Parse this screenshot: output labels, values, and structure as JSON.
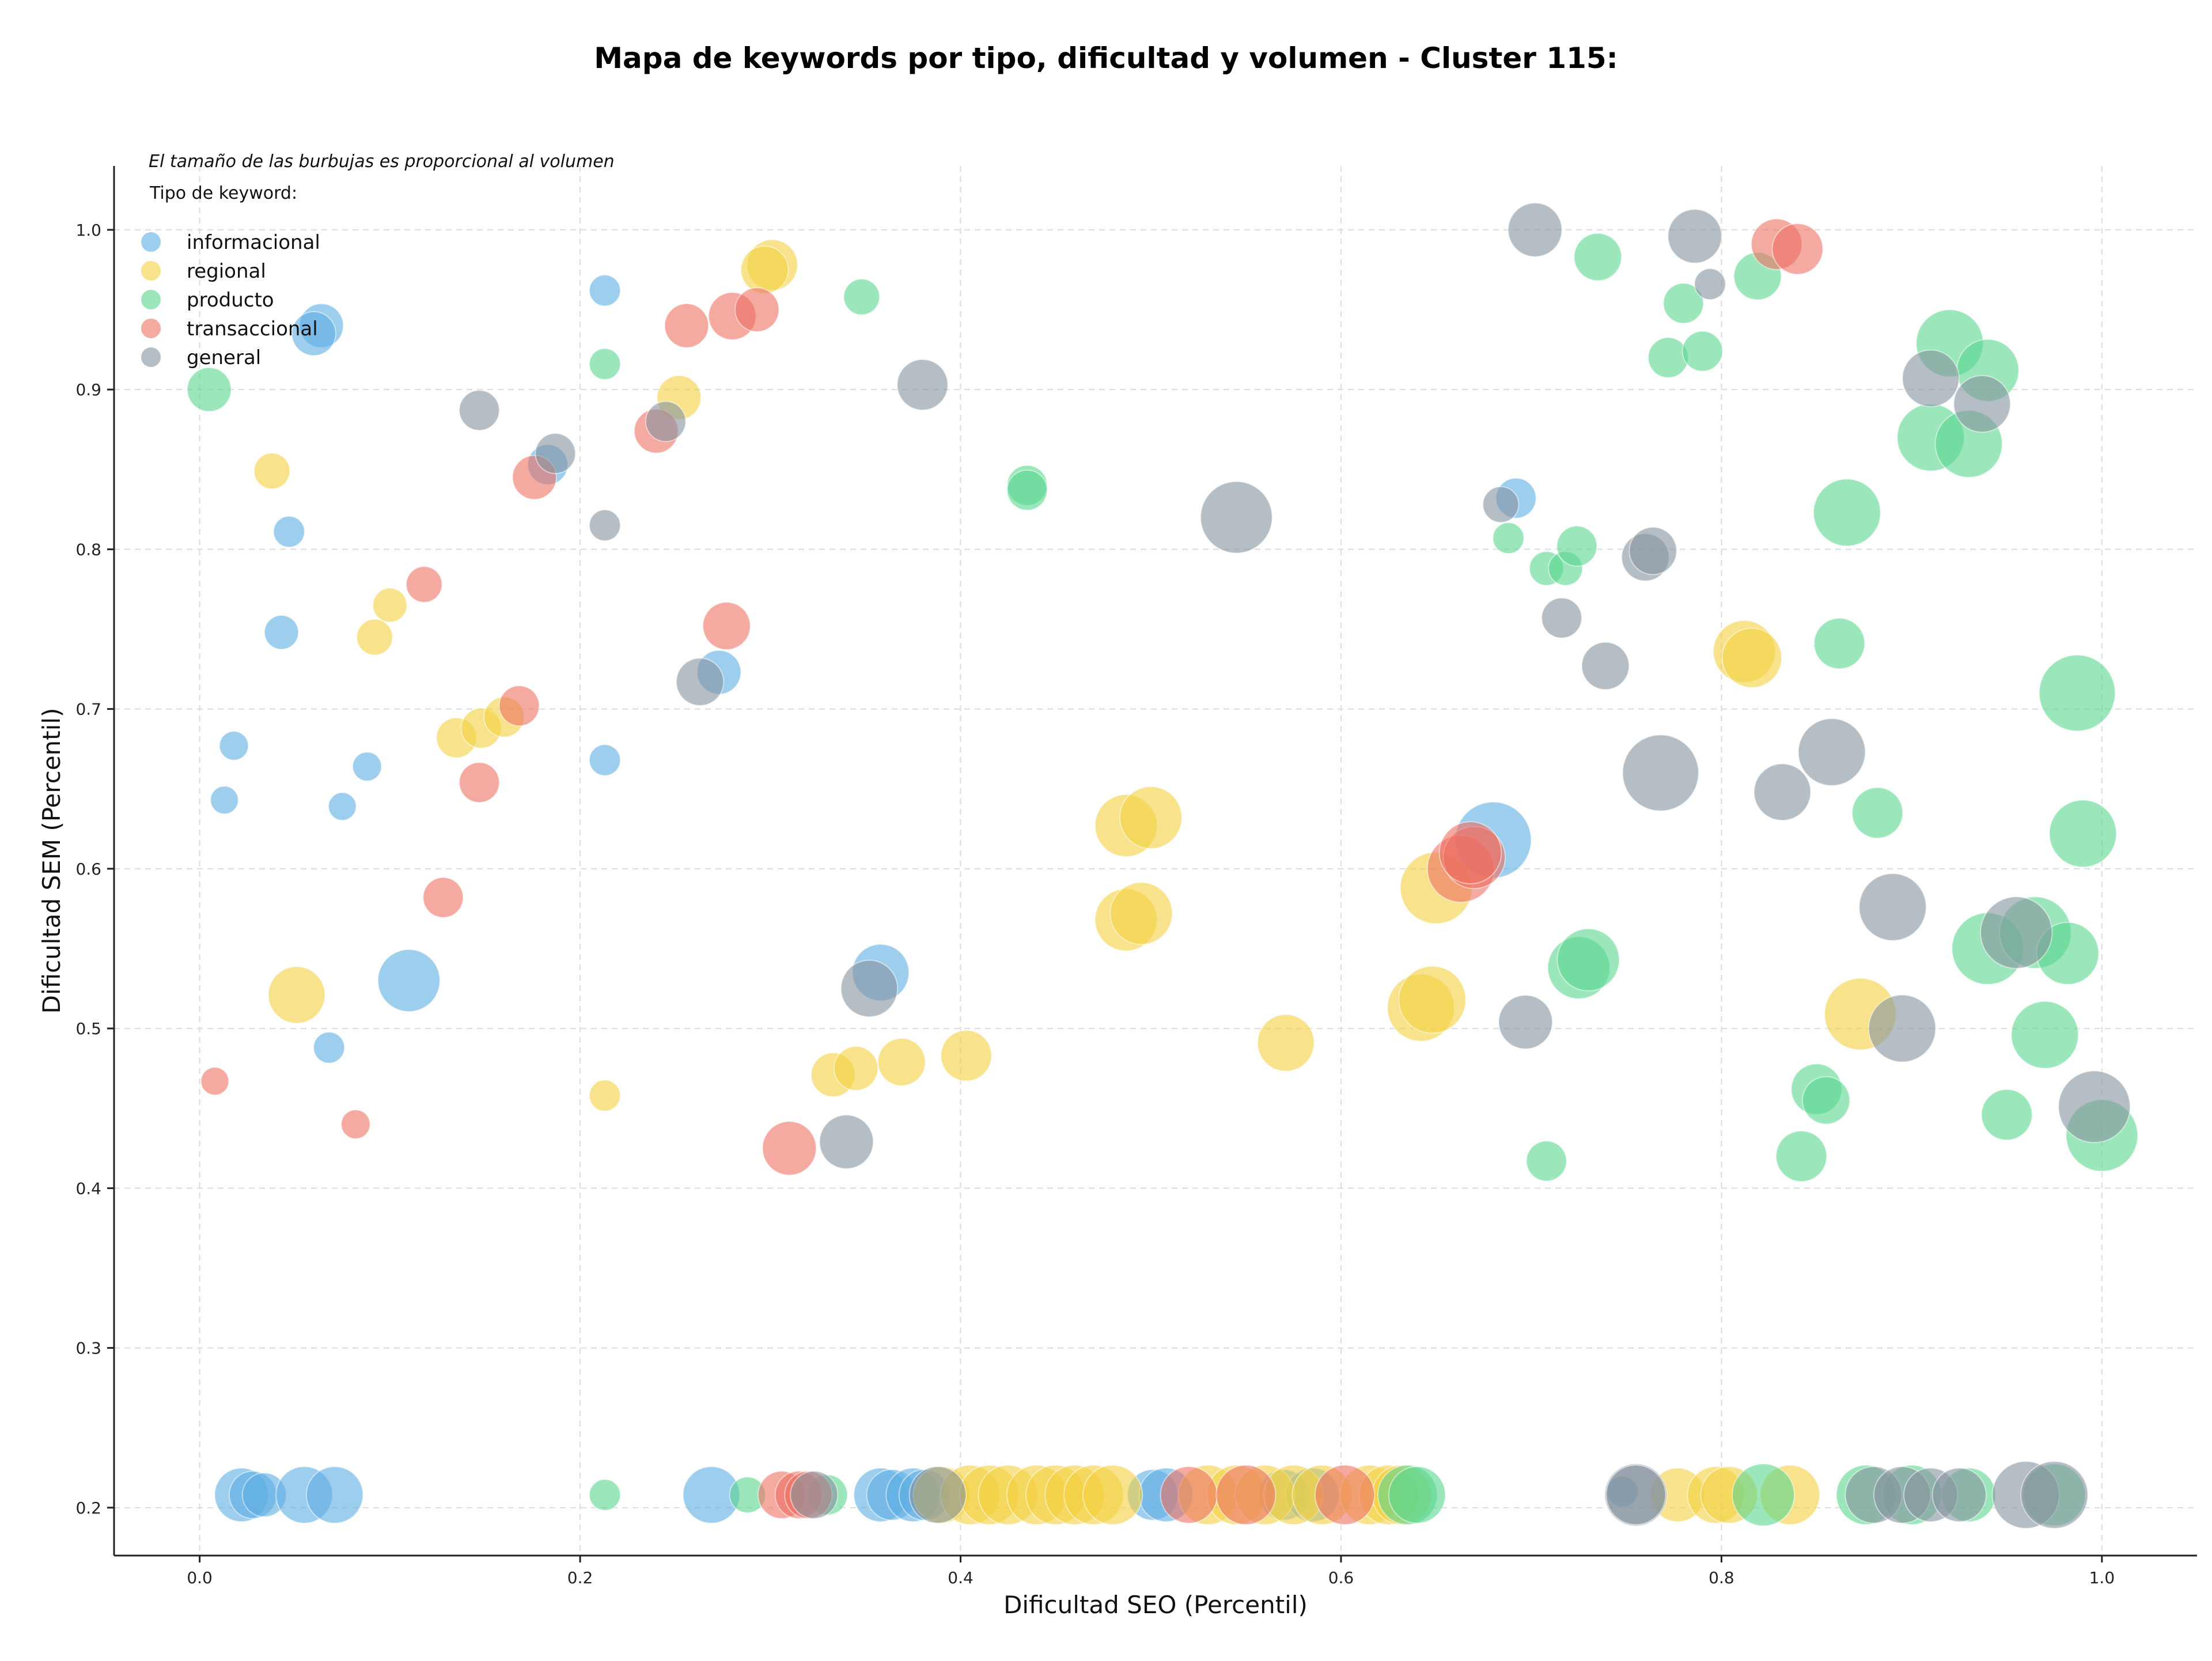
{
  "chart_data": {
    "type": "scatter",
    "title": "Mapa de keywords por tipo, dificultad y volumen - Cluster 115:",
    "xlabel": "Dificultad SEO (Percentil)",
    "ylabel": "Dificultad SEM (Percentil)",
    "note": "El tamaño de las burbujas es proporcional al volumen",
    "legend_title": "Tipo de keyword:",
    "legend_placement": "top-left",
    "grid": true,
    "xlim": [
      -0.045,
      1.05
    ],
    "ylim": [
      0.17,
      1.04
    ],
    "x_ticks": [
      0.0,
      0.2,
      0.4,
      0.6,
      0.8,
      1.0
    ],
    "y_ticks": [
      0.2,
      0.3,
      0.4,
      0.5,
      0.6,
      0.7,
      0.8,
      0.9,
      1.0
    ],
    "x_tick_labels": [
      "0.0",
      "0.2",
      "0.4",
      "0.6",
      "0.8",
      "1.0"
    ],
    "y_tick_labels": [
      "0.2",
      "0.3",
      "0.4",
      "0.5",
      "0.6",
      "0.7",
      "0.8",
      "0.9",
      "1.0"
    ],
    "series": [
      {
        "name": "informacional",
        "color": "#5dade2",
        "points": [
          [
            0.064,
            0.94,
            3
          ],
          [
            0.06,
            0.935,
            3
          ],
          [
            0.213,
            0.962,
            1.5
          ],
          [
            0.047,
            0.811,
            1.5
          ],
          [
            0.043,
            0.748,
            1.8
          ],
          [
            0.018,
            0.677,
            1.3
          ],
          [
            0.013,
            0.643,
            1.2
          ],
          [
            0.088,
            0.664,
            1.3
          ],
          [
            0.075,
            0.639,
            1.2
          ],
          [
            0.213,
            0.668,
            1.5
          ],
          [
            0.11,
            0.53,
            6
          ],
          [
            0.068,
            0.488,
            1.5
          ],
          [
            0.273,
            0.723,
            3
          ],
          [
            0.183,
            0.853,
            2.5
          ],
          [
            0.358,
            0.535,
            5
          ],
          [
            0.692,
            0.832,
            2.5
          ],
          [
            0.68,
            0.618,
            9
          ],
          [
            0.748,
            0.21,
            1.5
          ],
          [
            0.022,
            0.208,
            4.5
          ],
          [
            0.028,
            0.208,
            3.5
          ],
          [
            0.034,
            0.208,
            3
          ],
          [
            0.055,
            0.208,
            5
          ],
          [
            0.071,
            0.208,
            5
          ],
          [
            0.269,
            0.208,
            5
          ],
          [
            0.358,
            0.208,
            4.5
          ],
          [
            0.364,
            0.208,
            4
          ],
          [
            0.375,
            0.208,
            4.5
          ],
          [
            0.381,
            0.208,
            4
          ],
          [
            0.501,
            0.208,
            4
          ],
          [
            0.508,
            0.208,
            4.5
          ],
          [
            0.57,
            0.208,
            4
          ],
          [
            0.585,
            0.208,
            4.5
          ]
        ]
      },
      {
        "name": "regional",
        "color": "#f4d03f",
        "points": [
          [
            0.301,
            0.978,
            4
          ],
          [
            0.297,
            0.975,
            3.5
          ],
          [
            0.252,
            0.895,
            3
          ],
          [
            0.038,
            0.849,
            2
          ],
          [
            0.1,
            0.765,
            1.8
          ],
          [
            0.092,
            0.745,
            2
          ],
          [
            0.135,
            0.682,
            2.5
          ],
          [
            0.148,
            0.688,
            2.5
          ],
          [
            0.16,
            0.695,
            2.5
          ],
          [
            0.051,
            0.521,
            5
          ],
          [
            0.213,
            0.458,
            1.5
          ],
          [
            0.333,
            0.471,
            3
          ],
          [
            0.345,
            0.475,
            3
          ],
          [
            0.369,
            0.479,
            3.5
          ],
          [
            0.403,
            0.483,
            4
          ],
          [
            0.487,
            0.627,
            6
          ],
          [
            0.5,
            0.632,
            6
          ],
          [
            0.487,
            0.568,
            6
          ],
          [
            0.495,
            0.572,
            6
          ],
          [
            0.571,
            0.491,
            5
          ],
          [
            0.642,
            0.513,
            7
          ],
          [
            0.648,
            0.518,
            7
          ],
          [
            0.65,
            0.588,
            8
          ],
          [
            0.812,
            0.736,
            6
          ],
          [
            0.816,
            0.732,
            5.5
          ],
          [
            0.873,
            0.509,
            8
          ],
          [
            0.39,
            0.208,
            5
          ],
          [
            0.405,
            0.208,
            5.5
          ],
          [
            0.415,
            0.208,
            5.5
          ],
          [
            0.425,
            0.208,
            5.5
          ],
          [
            0.44,
            0.208,
            5.5
          ],
          [
            0.45,
            0.208,
            5.5
          ],
          [
            0.46,
            0.208,
            5.5
          ],
          [
            0.47,
            0.208,
            5.5
          ],
          [
            0.48,
            0.208,
            5.5
          ],
          [
            0.53,
            0.208,
            5.5
          ],
          [
            0.545,
            0.208,
            5.5
          ],
          [
            0.56,
            0.208,
            5.5
          ],
          [
            0.575,
            0.208,
            5.5
          ],
          [
            0.59,
            0.208,
            5.5
          ],
          [
            0.615,
            0.208,
            5.5
          ],
          [
            0.625,
            0.208,
            5.5
          ],
          [
            0.632,
            0.208,
            5.5
          ],
          [
            0.777,
            0.208,
            4.5
          ],
          [
            0.797,
            0.208,
            5
          ],
          [
            0.804,
            0.208,
            5
          ],
          [
            0.836,
            0.208,
            5.5
          ]
        ]
      },
      {
        "name": "producto",
        "color": "#58d68d",
        "points": [
          [
            0.005,
            0.9,
            3
          ],
          [
            0.348,
            0.958,
            2
          ],
          [
            0.213,
            0.916,
            1.5
          ],
          [
            0.435,
            0.84,
            2.5
          ],
          [
            0.435,
            0.837,
            2.5
          ],
          [
            0.735,
            0.983,
            3.5
          ],
          [
            0.78,
            0.954,
            2.5
          ],
          [
            0.772,
            0.92,
            2.5
          ],
          [
            0.79,
            0.924,
            2.5
          ],
          [
            0.819,
            0.971,
            3.5
          ],
          [
            0.688,
            0.807,
            1.5
          ],
          [
            0.708,
            0.788,
            1.8
          ],
          [
            0.718,
            0.788,
            1.8
          ],
          [
            0.724,
            0.802,
            2.5
          ],
          [
            0.866,
            0.823,
            7
          ],
          [
            0.92,
            0.929,
            7
          ],
          [
            0.94,
            0.912,
            6
          ],
          [
            0.91,
            0.87,
            7
          ],
          [
            0.93,
            0.866,
            7
          ],
          [
            0.862,
            0.741,
            4
          ],
          [
            0.987,
            0.71,
            9
          ],
          [
            0.99,
            0.622,
            7
          ],
          [
            0.882,
            0.635,
            4
          ],
          [
            0.725,
            0.538,
            6
          ],
          [
            0.73,
            0.543,
            6
          ],
          [
            0.94,
            0.55,
            8
          ],
          [
            0.965,
            0.56,
            8
          ],
          [
            0.982,
            0.547,
            6
          ],
          [
            0.97,
            0.496,
            7
          ],
          [
            0.85,
            0.462,
            4
          ],
          [
            0.855,
            0.455,
            3.5
          ],
          [
            0.842,
            0.42,
            4
          ],
          [
            0.95,
            0.446,
            4
          ],
          [
            0.708,
            0.417,
            2.5
          ],
          [
            1.0,
            0.433,
            8
          ],
          [
            0.213,
            0.208,
            1.5
          ],
          [
            0.288,
            0.208,
            2
          ],
          [
            0.33,
            0.208,
            2.5
          ],
          [
            0.635,
            0.208,
            5.5
          ],
          [
            0.64,
            0.208,
            5
          ],
          [
            0.822,
            0.208,
            6
          ],
          [
            0.876,
            0.208,
            5.5
          ],
          [
            0.9,
            0.208,
            5.5
          ],
          [
            0.93,
            0.208,
            4.5
          ],
          [
            0.975,
            0.208,
            6
          ]
        ]
      },
      {
        "name": "transaccional",
        "color": "#ec7063",
        "points": [
          [
            0.256,
            0.94,
            3
          ],
          [
            0.28,
            0.946,
            3.5
          ],
          [
            0.293,
            0.95,
            3
          ],
          [
            0.24,
            0.874,
            3
          ],
          [
            0.176,
            0.845,
            3
          ],
          [
            0.118,
            0.778,
            2
          ],
          [
            0.277,
            0.752,
            3.5
          ],
          [
            0.168,
            0.702,
            2.5
          ],
          [
            0.147,
            0.654,
            2.5
          ],
          [
            0.128,
            0.582,
            2.5
          ],
          [
            0.008,
            0.467,
            1.2
          ],
          [
            0.082,
            0.44,
            1.3
          ],
          [
            0.31,
            0.425,
            4.5
          ],
          [
            0.829,
            0.991,
            4
          ],
          [
            0.84,
            0.988,
            4
          ],
          [
            0.663,
            0.6,
            7
          ],
          [
            0.67,
            0.607,
            6
          ],
          [
            0.668,
            0.61,
            6
          ],
          [
            0.306,
            0.208,
            3.5
          ],
          [
            0.315,
            0.208,
            3.5
          ],
          [
            0.32,
            0.208,
            3.5
          ],
          [
            0.52,
            0.208,
            5
          ],
          [
            0.55,
            0.208,
            5.5
          ],
          [
            0.602,
            0.208,
            5.5
          ]
        ]
      },
      {
        "name": "general",
        "color": "#85929e",
        "points": [
          [
            0.147,
            0.887,
            2.5
          ],
          [
            0.187,
            0.86,
            2.5
          ],
          [
            0.213,
            0.815,
            1.5
          ],
          [
            0.245,
            0.88,
            2.5
          ],
          [
            0.263,
            0.717,
            3.5
          ],
          [
            0.38,
            0.903,
            4
          ],
          [
            0.352,
            0.525,
            5
          ],
          [
            0.34,
            0.429,
            4.5
          ],
          [
            0.545,
            0.82,
            8
          ],
          [
            0.702,
            1.0,
            4.5
          ],
          [
            0.786,
            0.996,
            4.5
          ],
          [
            0.794,
            0.966,
            1.5
          ],
          [
            0.684,
            0.828,
            2
          ],
          [
            0.76,
            0.795,
            3.5
          ],
          [
            0.764,
            0.799,
            3.5
          ],
          [
            0.716,
            0.757,
            2.5
          ],
          [
            0.739,
            0.727,
            3.5
          ],
          [
            0.768,
            0.66,
            9
          ],
          [
            0.832,
            0.648,
            5
          ],
          [
            0.858,
            0.673,
            7
          ],
          [
            0.89,
            0.576,
            7
          ],
          [
            0.895,
            0.5,
            7
          ],
          [
            0.697,
            0.504,
            4.5
          ],
          [
            0.91,
            0.907,
            5
          ],
          [
            0.937,
            0.891,
            5
          ],
          [
            0.955,
            0.56,
            8
          ],
          [
            0.996,
            0.451,
            8
          ],
          [
            0.323,
            0.208,
            3.5
          ],
          [
            0.388,
            0.208,
            5
          ],
          [
            0.755,
            0.208,
            6
          ],
          [
            0.755,
            0.208,
            5.5
          ],
          [
            0.88,
            0.208,
            5
          ],
          [
            0.895,
            0.208,
            5
          ],
          [
            0.91,
            0.208,
            4.5
          ],
          [
            0.925,
            0.208,
            4.5
          ],
          [
            0.96,
            0.208,
            7
          ],
          [
            0.975,
            0.208,
            7
          ]
        ]
      }
    ]
  }
}
